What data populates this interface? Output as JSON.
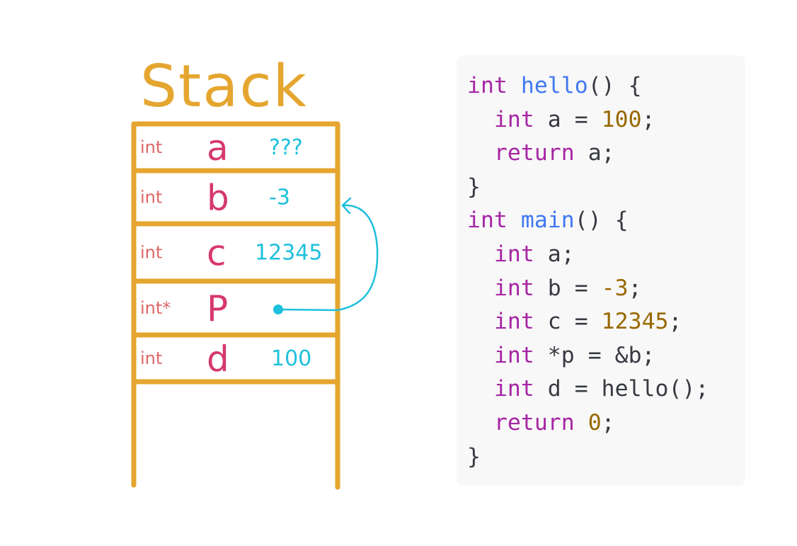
{
  "colors": {
    "frame": "#e5a630",
    "type": "#e06666",
    "name": "#d63870",
    "value": "#1fc0dd",
    "code_bg": "#f8f8f8"
  },
  "stack": {
    "title": "Stack",
    "rows": [
      {
        "type": "int",
        "name": "a",
        "value": "???"
      },
      {
        "type": "int",
        "name": "b",
        "value": "-3"
      },
      {
        "type": "int",
        "name": "c",
        "value": "12345"
      },
      {
        "type": "int*",
        "name": "P",
        "value": ""
      },
      {
        "type": "int",
        "name": "d",
        "value": "100"
      }
    ],
    "pointer": {
      "from": "P",
      "to": "b"
    }
  },
  "code": {
    "lines": [
      [
        {
          "t": "int",
          "c": "kw"
        },
        {
          "t": " ",
          "c": "pl"
        },
        {
          "t": "hello",
          "c": "fn"
        },
        {
          "t": "() {",
          "c": "pl"
        }
      ],
      [
        {
          "t": "  ",
          "c": "pl"
        },
        {
          "t": "int",
          "c": "kw"
        },
        {
          "t": " a = ",
          "c": "pl"
        },
        {
          "t": "100",
          "c": "num"
        },
        {
          "t": ";",
          "c": "pl"
        }
      ],
      [
        {
          "t": "  ",
          "c": "pl"
        },
        {
          "t": "return",
          "c": "kw"
        },
        {
          "t": " a;",
          "c": "pl"
        }
      ],
      [
        {
          "t": "}",
          "c": "pl"
        }
      ],
      [
        {
          "t": "int",
          "c": "kw"
        },
        {
          "t": " ",
          "c": "pl"
        },
        {
          "t": "main",
          "c": "fn"
        },
        {
          "t": "() {",
          "c": "pl"
        }
      ],
      [
        {
          "t": "  ",
          "c": "pl"
        },
        {
          "t": "int",
          "c": "kw"
        },
        {
          "t": " a;",
          "c": "pl"
        }
      ],
      [
        {
          "t": "  ",
          "c": "pl"
        },
        {
          "t": "int",
          "c": "kw"
        },
        {
          "t": " b = ",
          "c": "pl"
        },
        {
          "t": "-3",
          "c": "num"
        },
        {
          "t": ";",
          "c": "pl"
        }
      ],
      [
        {
          "t": "  ",
          "c": "pl"
        },
        {
          "t": "int",
          "c": "kw"
        },
        {
          "t": " c = ",
          "c": "pl"
        },
        {
          "t": "12345",
          "c": "num"
        },
        {
          "t": ";",
          "c": "pl"
        }
      ],
      [
        {
          "t": "  ",
          "c": "pl"
        },
        {
          "t": "int",
          "c": "kw"
        },
        {
          "t": " *p = &b;",
          "c": "pl"
        }
      ],
      [
        {
          "t": "  ",
          "c": "pl"
        },
        {
          "t": "int",
          "c": "kw"
        },
        {
          "t": " d = hello();",
          "c": "pl"
        }
      ],
      [
        {
          "t": "  ",
          "c": "pl"
        },
        {
          "t": "return",
          "c": "kw"
        },
        {
          "t": " ",
          "c": "pl"
        },
        {
          "t": "0",
          "c": "num"
        },
        {
          "t": ";",
          "c": "pl"
        }
      ],
      [
        {
          "t": "}",
          "c": "pl"
        }
      ]
    ]
  }
}
